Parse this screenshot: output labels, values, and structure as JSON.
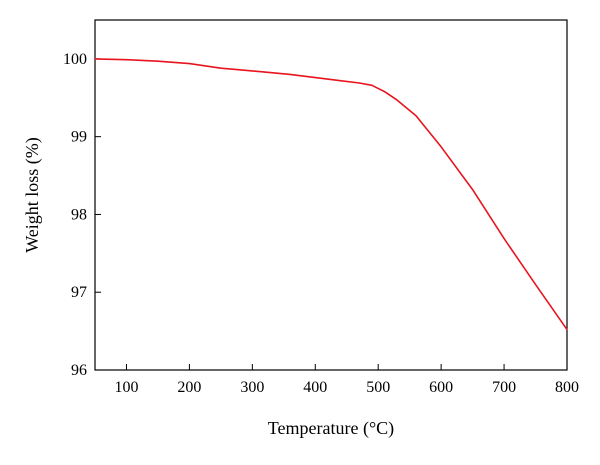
{
  "chart_data": {
    "type": "line",
    "title": "",
    "xlabel": "Temperature (°C)",
    "ylabel": "Weight loss (%)",
    "xlim": [
      50,
      800
    ],
    "ylim": [
      96,
      100.5
    ],
    "xticks": [
      100,
      200,
      300,
      400,
      500,
      600,
      700,
      800
    ],
    "yticks": [
      96,
      97,
      98,
      99,
      100
    ],
    "grid": false,
    "legend": "none",
    "series": [
      {
        "color": "#e8141e",
        "x": [
          50,
          100,
          150,
          200,
          250,
          280,
          320,
          360,
          400,
          440,
          470,
          490,
          510,
          530,
          560,
          600,
          650,
          700,
          750,
          800
        ],
        "y": [
          100.0,
          99.99,
          99.97,
          99.94,
          99.88,
          99.86,
          99.83,
          99.8,
          99.76,
          99.72,
          99.69,
          99.66,
          99.58,
          99.47,
          99.27,
          98.87,
          98.32,
          97.69,
          97.1,
          96.52
        ]
      }
    ]
  }
}
